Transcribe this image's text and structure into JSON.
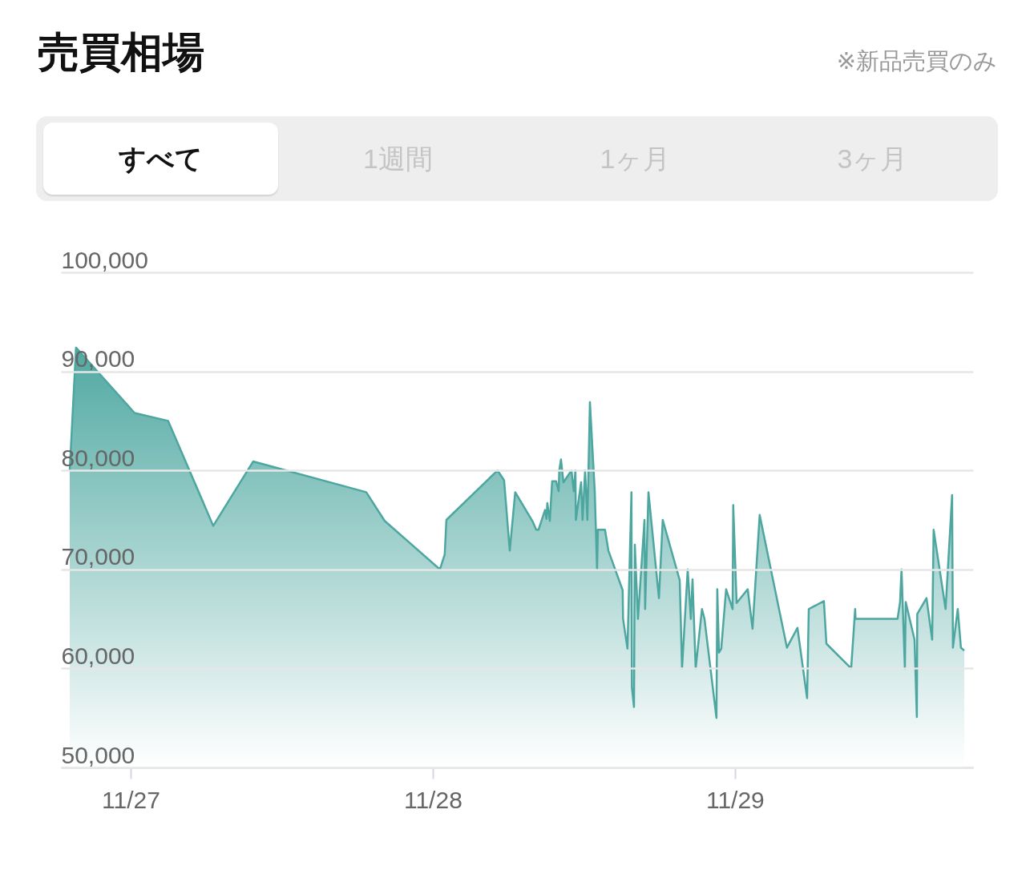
{
  "chart_data": {
    "type": "area",
    "title": "売買相場",
    "subtitle": "※新品売買のみ",
    "annotations": [
      "すべて",
      "1週間",
      "1ヶ月",
      "3ヶ月"
    ],
    "x": [
      "--11-26T19:10",
      "--11-26T19:40",
      "--11-27T00:19",
      "--11-27T02:59",
      "--11-27T06:34",
      "--11-27T09:44",
      "--11-27T18:43",
      "--11-27T20:11",
      "--11-28T00:34",
      "--11-28T00:57",
      "--11-28T01:05",
      "--11-28T05:09",
      "--11-28T05:40",
      "--11-28T06:07",
      "--11-28T06:33",
      "--11-28T07:57",
      "--11-28T08:13",
      "--11-28T08:24",
      "--11-28T08:55",
      "--11-28T09:02",
      "--11-28T09:06",
      "--11-28T09:18",
      "--11-28T09:29",
      "--11-28T09:48",
      "--11-28T10:00",
      "--11-28T10:03",
      "--11-28T10:11",
      "--11-28T10:23",
      "--11-28T11:01",
      "--11-28T11:12",
      "--11-28T11:20",
      "--11-28T11:22",
      "--11-28T11:47",
      "--11-28T11:54",
      "--11-28T12:06",
      "--11-28T12:17",
      "--11-28T12:29",
      "--11-28T12:52",
      "--11-28T13:03",
      "--11-28T13:07",
      "--11-28T13:41",
      "--11-28T13:57",
      "--11-28T15:05",
      "--11-28T15:07",
      "--11-28T15:28",
      "--11-28T15:47",
      "--11-28T15:49",
      "--11-28T15:59",
      "--11-28T16:03",
      "--11-28T16:18",
      "--11-28T16:49",
      "--11-28T16:52",
      "--11-28T17:08",
      "--11-28T17:58",
      "--11-28T18:16",
      "--11-28T19:37",
      "--11-28T19:48",
      "--11-28T20:15",
      "--11-28T20:30",
      "--11-28T20:38",
      "--11-28T20:53",
      "--11-28T21:23",
      "--11-28T21:35",
      "--11-28T22:32",
      "--11-28T22:36",
      "--11-28T22:44",
      "--11-28T22:55",
      "--11-28T23:18",
      "--11-28T23:49",
      "--11-28T23:52",
      "--11-29T00:08",
      "--11-29T01:01",
      "--11-29T01:24",
      "--11-29T01:58",
      "--11-29T04:08",
      "--11-29T04:58",
      "--11-29T05:44",
      "--11-29T05:52",
      "--11-29T07:04",
      "--11-29T07:16",
      "--11-29T09:14",
      "--11-29T09:33",
      "--11-29T09:35",
      "--11-29T12:55",
      "--11-29T13:07",
      "--11-29T13:14",
      "--11-29T13:30",
      "--11-29T13:34",
      "--11-29T14:16",
      "--11-29T14:27",
      "--11-29T14:29",
      "--11-29T15:13",
      "--11-29T15:40",
      "--11-29T15:47",
      "--11-29T16:44",
      "--11-29T17:15",
      "--11-29T17:19",
      "--11-29T17:42",
      "--11-29T17:57",
      "--11-29T18:13"
    ],
    "series": [
      {
        "color": "#4da7a0",
        "values": [
          80000,
          92400,
          85800,
          85000,
          74400,
          80900,
          77800,
          74900,
          70000,
          71500,
          75000,
          80000,
          79000,
          71900,
          77800,
          74800,
          74000,
          74000,
          76000,
          75100,
          76700,
          74900,
          78900,
          78900,
          77900,
          80000,
          81100,
          78800,
          80000,
          77900,
          80000,
          75000,
          78800,
          75000,
          80000,
          75000,
          86900,
          77900,
          70000,
          74000,
          74000,
          71900,
          67900,
          65000,
          62000,
          77800,
          58100,
          56100,
          72500,
          65000,
          75000,
          66000,
          77800,
          67100,
          75000,
          68900,
          60000,
          70000,
          65000,
          69000,
          60000,
          66000,
          65000,
          55000,
          68000,
          61600,
          62000,
          68000,
          66000,
          76500,
          66600,
          68000,
          64000,
          75500,
          62100,
          64100,
          57000,
          66000,
          66800,
          62500,
          60000,
          66000,
          65000,
          65000,
          66700,
          70000,
          60000,
          66700,
          62900,
          55100,
          65500,
          67100,
          62900,
          74000,
          66000,
          77500,
          62100,
          66000,
          62100,
          61800
        ]
      }
    ],
    "xlim": [
      "--11-26T18:28",
      "--11-29T18:55"
    ],
    "xticks": [
      {
        "value": "--11-27",
        "label": "11/27"
      },
      {
        "value": "--11-28",
        "label": "11/28"
      },
      {
        "value": "--11-29",
        "label": "11/29"
      }
    ],
    "ylim": [
      50000,
      100000
    ],
    "yticks": [
      {
        "value": 50000,
        "label": "50,000"
      },
      {
        "value": 60000,
        "label": "60,000"
      },
      {
        "value": 70000,
        "label": "70,000"
      },
      {
        "value": 80000,
        "label": "80,000"
      },
      {
        "value": 90000,
        "label": "90,000"
      },
      {
        "value": 100000,
        "label": "100,000"
      }
    ],
    "grid": "y"
  }
}
